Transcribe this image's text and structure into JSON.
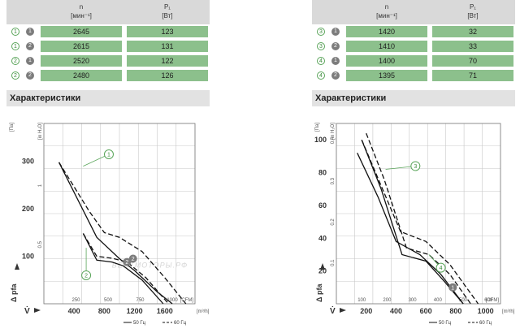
{
  "left": {
    "header": {
      "n": "n",
      "n_unit": "[мин⁻¹]",
      "p": "P₁",
      "p_unit": "[Вт]"
    },
    "rows": [
      {
        "curve": "1",
        "speed": "1",
        "n": "2645",
        "p": "123"
      },
      {
        "curve": "1",
        "speed": "2",
        "n": "2615",
        "p": "131"
      },
      {
        "curve": "2",
        "speed": "1",
        "n": "2520",
        "p": "122"
      },
      {
        "curve": "2",
        "speed": "2",
        "n": "2480",
        "p": "126"
      }
    ],
    "section_title": "Характеристики"
  },
  "right": {
    "header": {
      "n": "n",
      "n_unit": "[мин⁻¹]",
      "p": "P₁",
      "p_unit": "[Вт]"
    },
    "rows": [
      {
        "curve": "3",
        "speed": "1",
        "n": "1420",
        "p": "32"
      },
      {
        "curve": "3",
        "speed": "2",
        "n": "1410",
        "p": "33"
      },
      {
        "curve": "4",
        "speed": "1",
        "n": "1400",
        "p": "70"
      },
      {
        "curve": "4",
        "speed": "2",
        "n": "1395",
        "p": "71"
      }
    ],
    "section_title": "Характеристики"
  },
  "chart_data": [
    {
      "type": "line",
      "ylabel": "Δ pfa",
      "y_unit": "[Па]",
      "y2_unit": "[in H₂O]",
      "xlabel": "V̇",
      "x_unit": "[m³/h]",
      "x2_unit": "[CFM]",
      "ylim": [
        0,
        380
      ],
      "y_ticks": [
        100,
        200,
        300
      ],
      "y2_ticks": [
        0.5,
        1.0
      ],
      "xlim": [
        0,
        2000
      ],
      "x_ticks": [
        400,
        800,
        1200,
        1600
      ],
      "x2_ticks": [
        250,
        500,
        750,
        1000
      ],
      "legend": {
        "solid": "— 50 Гц",
        "dashed": "— — 60 Гц"
      },
      "curve_labels": [
        "1",
        "2"
      ],
      "watermark": "ВЕНТМОТОРЫ.РФ",
      "series": [
        {
          "curve": "1",
          "style": "solid",
          "x": [
            200,
            700,
            1000,
            1200,
            1500,
            1700
          ],
          "y": [
            298,
            140,
            95,
            70,
            25,
            0
          ]
        },
        {
          "curve": "1",
          "style": "dashed",
          "x": [
            200,
            600,
            800,
            1000,
            1300,
            1600,
            1880
          ],
          "y": [
            298,
            195,
            150,
            140,
            110,
            55,
            0
          ]
        },
        {
          "curve": "2",
          "style": "solid",
          "x": [
            520,
            700,
            900,
            1050,
            1300,
            1580
          ],
          "y": [
            148,
            92,
            88,
            80,
            50,
            0
          ]
        },
        {
          "curve": "2",
          "style": "dashed",
          "x": [
            520,
            700,
            900,
            1100,
            1350,
            1650
          ],
          "y": [
            148,
            100,
            96,
            88,
            55,
            0
          ]
        }
      ]
    },
    {
      "type": "line",
      "ylabel": "Δ pfa",
      "y_unit": "[Па]",
      "y2_unit": "[in H₂O]",
      "xlabel": "V̇",
      "x_unit": "[m³/h]",
      "x2_unit": "[CFM]",
      "ylim": [
        0,
        110
      ],
      "y_ticks": [
        20,
        40,
        60,
        80,
        100
      ],
      "y2_ticks": [
        0.1,
        0.2,
        0.3,
        0.4
      ],
      "xlim": [
        0,
        1100
      ],
      "x_ticks": [
        200,
        400,
        600,
        800,
        1000
      ],
      "x2_ticks": [
        100,
        200,
        300,
        400,
        500,
        600
      ],
      "legend": {
        "solid": "— 50 Гц",
        "dashed": "— — 60 Гц"
      },
      "curve_labels": [
        "3",
        "4"
      ],
      "series": [
        {
          "curve": "3",
          "style": "solid",
          "x": [
            140,
            280,
            400,
            560,
            700,
            850
          ],
          "y": [
            92,
            65,
            38,
            30,
            18,
            0
          ]
        },
        {
          "curve": "3",
          "style": "dashed",
          "x": [
            170,
            300,
            430,
            600,
            760,
            950
          ],
          "y": [
            100,
            72,
            44,
            38,
            24,
            0
          ]
        },
        {
          "curve": "4",
          "style": "solid",
          "x": [
            170,
            300,
            440,
            600,
            720,
            850
          ],
          "y": [
            100,
            70,
            30,
            26,
            14,
            0
          ]
        },
        {
          "curve": "4",
          "style": "dashed",
          "x": [
            200,
            320,
            470,
            620,
            760,
            900
          ],
          "y": [
            104,
            76,
            34,
            30,
            18,
            0
          ]
        }
      ]
    }
  ]
}
